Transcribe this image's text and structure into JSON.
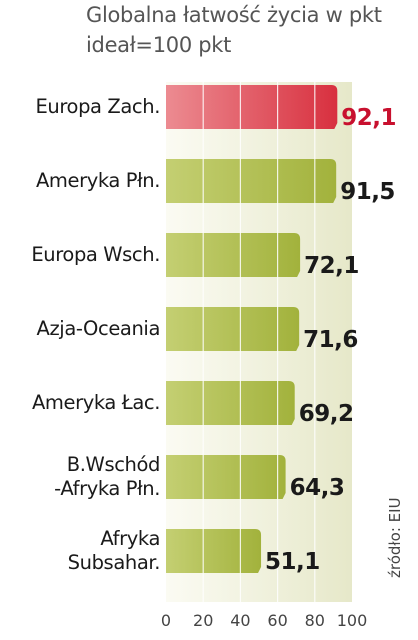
{
  "chart_data": {
    "type": "bar",
    "orientation": "horizontal",
    "title": "Globalna łatwość życia w pkt",
    "subtitle": "ideał=100 pkt",
    "categories": [
      "Europa Zach.",
      "Ameryka Płn.",
      "Europa Wsch.",
      "Azja-Oceania",
      "Ameryka Łac.",
      "B.Wschód\n-Afryka Płn.",
      "Afryka\nSubsahar."
    ],
    "values": [
      92.1,
      91.5,
      72.1,
      71.6,
      69.2,
      64.3,
      51.1
    ],
    "value_labels": [
      "92,1",
      "91,5",
      "72,1",
      "71,6",
      "69,2",
      "64,3",
      "51,1"
    ],
    "xlim": [
      0,
      100
    ],
    "xticks": [
      0,
      20,
      40,
      60,
      80,
      100
    ],
    "tick_labels": [
      "0",
      "20",
      "40",
      "60",
      "80",
      "100"
    ],
    "highlight_index": 0,
    "grid": true,
    "source": "źródło: EIU",
    "colors": {
      "bar": "#a2b23c",
      "bar_light": "#c4cf72",
      "highlight": "#d8303f",
      "highlight_light": "#ec8b91",
      "highlight_text": "#c8102e",
      "text": "#1a1a1a",
      "panel_light": "#fbfbf3",
      "panel_dark": "#e6e8c9"
    }
  }
}
